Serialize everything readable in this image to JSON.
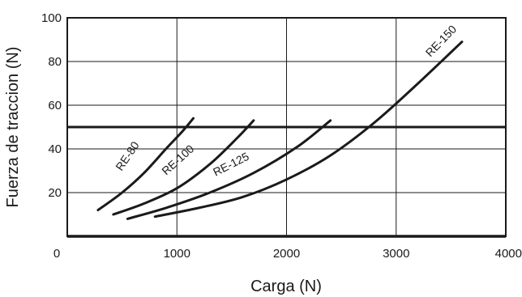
{
  "chart_data": {
    "type": "line",
    "xlabel": "Carga (N)",
    "ylabel": "Fuerza de traccion (N)",
    "xlim": [
      0,
      4000
    ],
    "ylim": [
      0,
      100
    ],
    "x_ticks": [
      "0",
      "1000",
      "2000",
      "3000",
      "4000"
    ],
    "y_ticks": [
      "20",
      "40",
      "60",
      "80",
      "100"
    ],
    "grid": true,
    "reference_line": {
      "y": 50
    },
    "series": [
      {
        "name": "RE-80",
        "points": [
          [
            280,
            12
          ],
          [
            500,
            20
          ],
          [
            700,
            29
          ],
          [
            900,
            40
          ],
          [
            1050,
            48
          ],
          [
            1150,
            54
          ]
        ]
      },
      {
        "name": "RE-100",
        "points": [
          [
            420,
            10
          ],
          [
            700,
            15
          ],
          [
            1000,
            22
          ],
          [
            1300,
            33
          ],
          [
            1550,
            45
          ],
          [
            1700,
            53
          ]
        ]
      },
      {
        "name": "RE-125",
        "points": [
          [
            550,
            8
          ],
          [
            900,
            13
          ],
          [
            1300,
            20
          ],
          [
            1700,
            29
          ],
          [
            2100,
            41
          ],
          [
            2400,
            53
          ]
        ]
      },
      {
        "name": "RE-150",
        "points": [
          [
            800,
            9
          ],
          [
            1200,
            13
          ],
          [
            1600,
            18
          ],
          [
            2000,
            26
          ],
          [
            2400,
            37
          ],
          [
            2800,
            52
          ],
          [
            3200,
            70
          ],
          [
            3600,
            89
          ]
        ]
      }
    ]
  }
}
